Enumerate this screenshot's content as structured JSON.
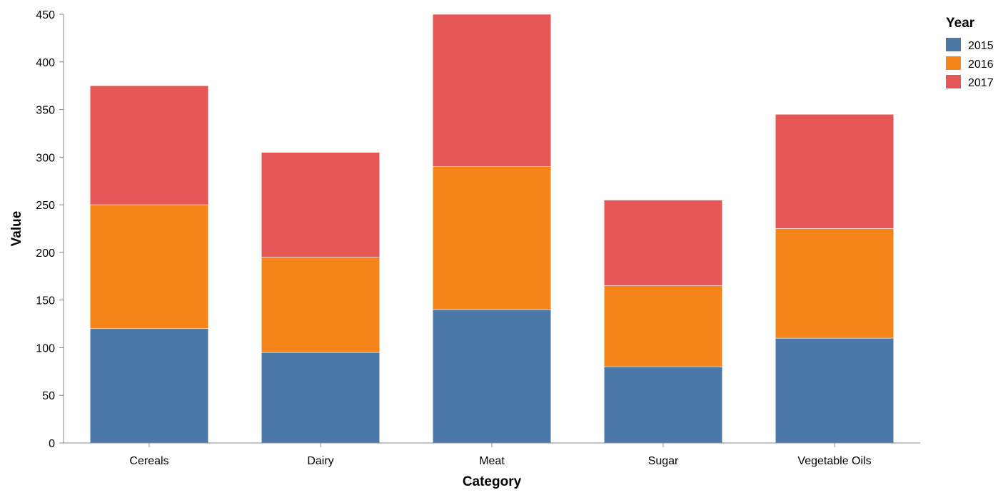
{
  "chart_data": {
    "type": "bar",
    "stacked": true,
    "categories": [
      "Cereals",
      "Dairy",
      "Meat",
      "Sugar",
      "Vegetable Oils"
    ],
    "series": [
      {
        "name": "2015",
        "color": "#4c78a8",
        "values": [
          120,
          95,
          140,
          80,
          110
        ]
      },
      {
        "name": "2016",
        "color": "#f58518",
        "values": [
          130,
          100,
          150,
          85,
          115
        ]
      },
      {
        "name": "2017",
        "color": "#e45756",
        "values": [
          125,
          110,
          160,
          90,
          120
        ]
      }
    ],
    "xlabel": "Category",
    "ylabel": "Value",
    "ylim": [
      0,
      450
    ],
    "yticks": [
      0,
      50,
      100,
      150,
      200,
      250,
      300,
      350,
      400,
      450
    ],
    "grid": false,
    "legend": {
      "title": "Year",
      "placement": "top-right"
    }
  }
}
